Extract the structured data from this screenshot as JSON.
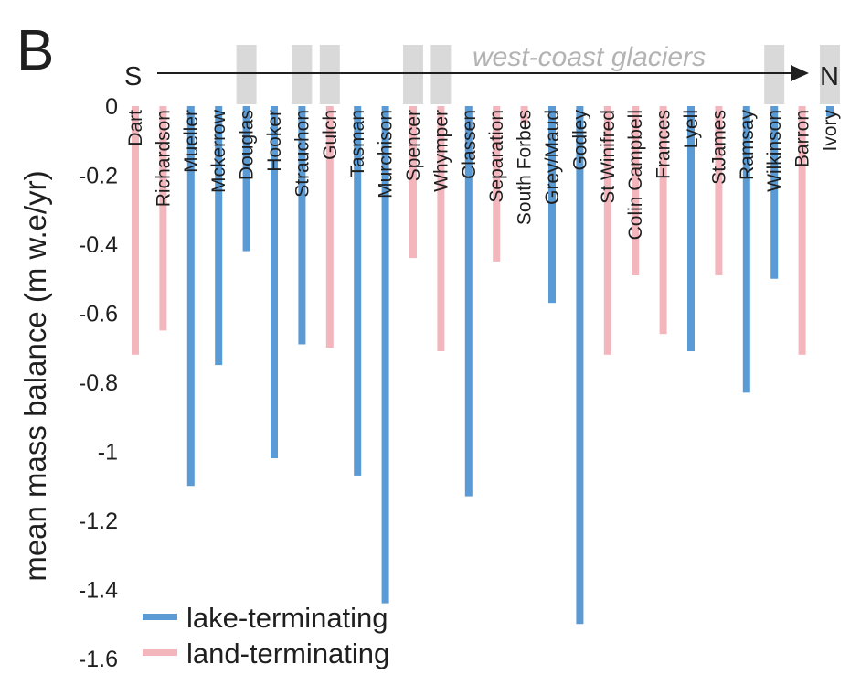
{
  "panel_label": "B",
  "direction": {
    "start": "S",
    "end": "N"
  },
  "west_coast_label": "west-coast glaciers",
  "colors": {
    "lake": "#5b9bd5",
    "land": "#f4b6bd",
    "highlight": "#d9d9d9",
    "text": "#1f1f1f",
    "annotation": "#b3b3b3"
  },
  "legend": {
    "lake": "lake-terminating",
    "land": "land-terminating"
  },
  "chart_data": {
    "type": "bar",
    "ylabel": "mean mass balance (m w.e/yr)",
    "xlabel": "",
    "ylim": [
      -1.6,
      0
    ],
    "yticks": [
      0,
      -0.2,
      -0.4,
      -0.6,
      -0.8,
      -1,
      -1.2,
      -1.4,
      -1.6
    ],
    "ytick_labels": [
      "0",
      "-0.2",
      "-0.4",
      "-0.6",
      "-0.8",
      "-1",
      "-1.2",
      "-1.4",
      "-1.6"
    ],
    "categories": [
      "Dart",
      "Richardson",
      "Mueller",
      "Mckerrow",
      "Douglas",
      "Hooker",
      "Strauchon",
      "Gulch",
      "Tasman",
      "Murchison",
      "Spencer",
      "Whymper",
      "Classen",
      "Separation",
      "South Forbes",
      "Grey/Maud",
      "Godley",
      "St Winifred",
      "Colin Campbell",
      "Frances",
      "Lyell",
      "StJames",
      "Ramsay",
      "Wilkinson",
      "Barron",
      "Ivory"
    ],
    "values": [
      -0.72,
      -0.65,
      -1.1,
      -0.75,
      -0.42,
      -1.02,
      -0.69,
      -0.7,
      -1.07,
      -1.44,
      -0.44,
      -0.71,
      -1.13,
      -0.45,
      -0.05,
      -0.57,
      -1.5,
      -0.72,
      -0.49,
      -0.66,
      -0.71,
      -0.49,
      -0.83,
      -0.5,
      -0.72,
      -0.03
    ],
    "terminus": [
      "land",
      "land",
      "lake",
      "lake",
      "lake",
      "lake",
      "lake",
      "land",
      "lake",
      "lake",
      "land",
      "land",
      "lake",
      "land",
      "land",
      "lake",
      "lake",
      "land",
      "land",
      "land",
      "lake",
      "land",
      "lake",
      "lake",
      "land",
      "lake"
    ],
    "west_coast": [
      false,
      false,
      false,
      false,
      true,
      false,
      true,
      true,
      false,
      false,
      true,
      true,
      false,
      false,
      false,
      false,
      false,
      false,
      false,
      false,
      false,
      false,
      false,
      true,
      false,
      true
    ],
    "grid": false,
    "legend_position": "bottom-left"
  }
}
